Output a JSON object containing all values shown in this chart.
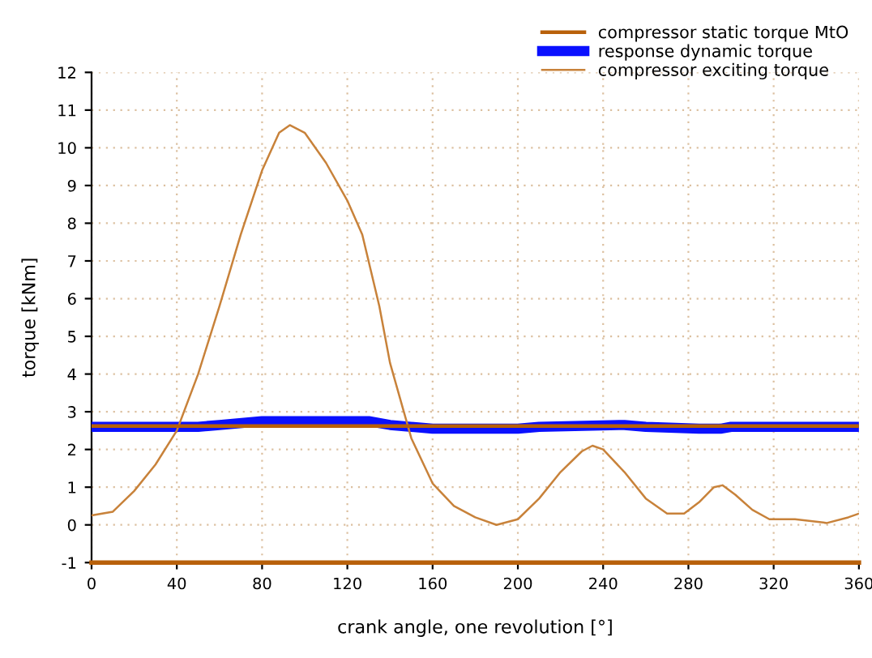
{
  "chart_data": {
    "type": "line",
    "xlabel": "crank angle, one revolution [°]",
    "ylabel": "torque [kNm]",
    "xlim": [
      0,
      360
    ],
    "ylim": [
      -1,
      12
    ],
    "xticks": [
      0,
      40,
      80,
      120,
      160,
      200,
      240,
      280,
      320,
      360
    ],
    "yticks": [
      -1,
      0,
      1,
      2,
      3,
      4,
      5,
      6,
      7,
      8,
      9,
      10,
      11,
      12
    ],
    "grid": true,
    "legend": "top right",
    "line_style": "solid",
    "marker": "none",
    "series": [
      {
        "name": "compressor static torque MtO",
        "color": "#b8600a",
        "x": [
          0,
          360
        ],
        "values": [
          2.62,
          2.62
        ]
      },
      {
        "name": "response dynamic torque",
        "color": "#0a10ff",
        "x": [
          0,
          50,
          60,
          80,
          130,
          140,
          160,
          200,
          210,
          250,
          260,
          285,
          295,
          300,
          360
        ],
        "values": [
          2.6,
          2.6,
          2.65,
          2.75,
          2.75,
          2.65,
          2.55,
          2.55,
          2.6,
          2.65,
          2.6,
          2.55,
          2.55,
          2.6,
          2.6
        ]
      },
      {
        "name": "compressor exciting torque",
        "color": "#c8823a",
        "x": [
          0,
          10,
          20,
          30,
          40,
          50,
          60,
          70,
          80,
          88,
          93,
          100,
          110,
          120,
          127,
          135,
          140,
          150,
          160,
          170,
          180,
          190,
          200,
          210,
          220,
          230,
          235,
          240,
          250,
          260,
          270,
          278,
          285,
          292,
          296,
          302,
          310,
          318,
          330,
          345,
          355,
          360
        ],
        "values": [
          0.25,
          0.35,
          0.9,
          1.6,
          2.5,
          4.0,
          5.8,
          7.7,
          9.4,
          10.4,
          10.6,
          10.4,
          9.6,
          8.6,
          7.7,
          5.8,
          4.3,
          2.3,
          1.1,
          0.5,
          0.2,
          0.0,
          0.15,
          0.7,
          1.4,
          1.95,
          2.1,
          2.0,
          1.4,
          0.7,
          0.3,
          0.3,
          0.6,
          1.0,
          1.05,
          0.8,
          0.4,
          0.15,
          0.15,
          0.05,
          0.2,
          0.3
        ]
      }
    ]
  }
}
